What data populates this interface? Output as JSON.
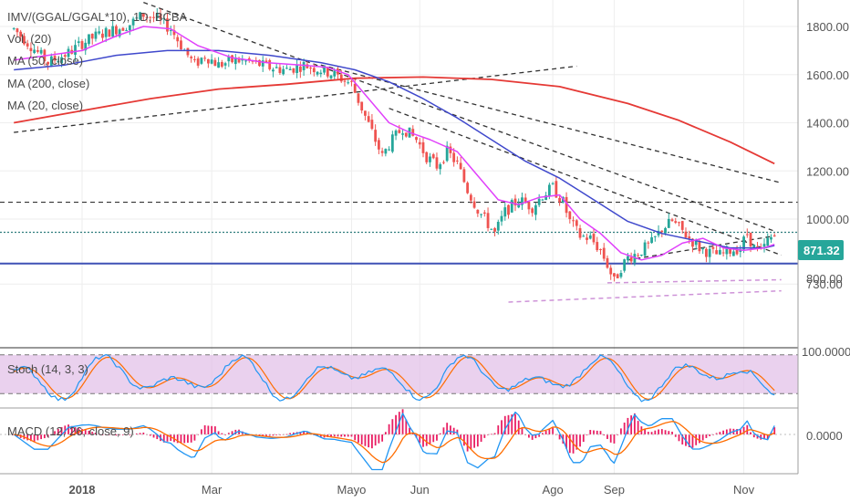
{
  "chart_data": {
    "type": "candlestick",
    "title": "IMV/(GGAL/GGAL*10), 1D, BCBA",
    "indicator_labels": {
      "vol": "Vol. (20)",
      "ma50": "MA (50, close)",
      "ma200": "MA (200, close)",
      "ma20": "MA (20, close)",
      "stoch": "Stoch (14, 3, 3)",
      "macd": "MACD (12, 26, close, 9)"
    },
    "price_axis": {
      "ticks": [
        {
          "value": 1800,
          "label": "1800.00"
        },
        {
          "value": 1600,
          "label": "1600.00"
        },
        {
          "value": 1400,
          "label": "1400.00"
        },
        {
          "value": 1200,
          "label": "1200.00"
        },
        {
          "value": 1000,
          "label": "1000.00"
        },
        {
          "value": 730,
          "label": "730.00"
        }
      ],
      "ylim": [
        690,
        1900
      ],
      "last_price": 871.32,
      "last_price_label": "871.32",
      "partial_label": "800.00"
    },
    "stoch_axis": {
      "label": "100.0000"
    },
    "macd_axis": {
      "label": "0.0000"
    },
    "x_axis": {
      "labels": [
        {
          "label": "2018",
          "day": 0,
          "bold": true
        },
        {
          "label": "Mar",
          "day": 38
        },
        {
          "label": "Mayo",
          "day": 79
        },
        {
          "label": "Jun",
          "day": 99
        },
        {
          "label": "Ago",
          "day": 138
        },
        {
          "label": "Sep",
          "day": 156
        },
        {
          "label": "Nov",
          "day": 194
        }
      ],
      "xlim": [
        -20,
        205
      ]
    },
    "ohlc_anchors": [
      [
        -20,
        1790
      ],
      [
        -15,
        1720
      ],
      [
        -10,
        1650
      ],
      [
        -4,
        1690
      ],
      [
        0,
        1730
      ],
      [
        4,
        1760
      ],
      [
        10,
        1790
      ],
      [
        14,
        1810
      ],
      [
        18,
        1850
      ],
      [
        22,
        1830
      ],
      [
        26,
        1790
      ],
      [
        30,
        1700
      ],
      [
        33,
        1640
      ],
      [
        36,
        1680
      ],
      [
        40,
        1640
      ],
      [
        45,
        1660
      ],
      [
        50,
        1650
      ],
      [
        55,
        1630
      ],
      [
        60,
        1620
      ],
      [
        65,
        1640
      ],
      [
        70,
        1620
      ],
      [
        74,
        1600
      ],
      [
        79,
        1560
      ],
      [
        82,
        1460
      ],
      [
        85,
        1360
      ],
      [
        88,
        1260
      ],
      [
        90,
        1310
      ],
      [
        94,
        1380
      ],
      [
        98,
        1330
      ],
      [
        101,
        1260
      ],
      [
        104,
        1220
      ],
      [
        107,
        1280
      ],
      [
        110,
        1230
      ],
      [
        113,
        1120
      ],
      [
        116,
        1040
      ],
      [
        119,
        980
      ],
      [
        121,
        940
      ],
      [
        124,
        1030
      ],
      [
        128,
        1080
      ],
      [
        132,
        1050
      ],
      [
        135,
        1100
      ],
      [
        138,
        1130
      ],
      [
        141,
        1070
      ],
      [
        143,
        990
      ],
      [
        146,
        930
      ],
      [
        149,
        920
      ],
      [
        152,
        870
      ],
      [
        154,
        810
      ],
      [
        156,
        740
      ],
      [
        158,
        800
      ],
      [
        160,
        840
      ],
      [
        163,
        860
      ],
      [
        167,
        900
      ],
      [
        170,
        960
      ],
      [
        173,
        990
      ],
      [
        176,
        950
      ],
      [
        178,
        920
      ],
      [
        181,
        880
      ],
      [
        184,
        860
      ],
      [
        187,
        850
      ],
      [
        190,
        870
      ],
      [
        193,
        880
      ],
      [
        195,
        940
      ],
      [
        197,
        880
      ],
      [
        199,
        860
      ],
      [
        201,
        910
      ],
      [
        203,
        930
      ]
    ],
    "moving_averages": {
      "ma20": [
        [
          -20,
          1660
        ],
        [
          -10,
          1680
        ],
        [
          0,
          1700
        ],
        [
          10,
          1760
        ],
        [
          18,
          1800
        ],
        [
          26,
          1790
        ],
        [
          34,
          1720
        ],
        [
          44,
          1670
        ],
        [
          54,
          1650
        ],
        [
          64,
          1640
        ],
        [
          72,
          1630
        ],
        [
          78,
          1600
        ],
        [
          84,
          1500
        ],
        [
          90,
          1400
        ],
        [
          96,
          1360
        ],
        [
          102,
          1330
        ],
        [
          110,
          1280
        ],
        [
          116,
          1180
        ],
        [
          122,
          1080
        ],
        [
          128,
          1060
        ],
        [
          134,
          1090
        ],
        [
          140,
          1100
        ],
        [
          146,
          1000
        ],
        [
          152,
          940
        ],
        [
          158,
          860
        ],
        [
          164,
          830
        ],
        [
          170,
          850
        ],
        [
          176,
          900
        ],
        [
          182,
          920
        ],
        [
          188,
          880
        ],
        [
          194,
          870
        ],
        [
          200,
          880
        ],
        [
          203,
          895
        ]
      ],
      "ma50": [
        [
          -20,
          1620
        ],
        [
          -5,
          1640
        ],
        [
          10,
          1680
        ],
        [
          25,
          1700
        ],
        [
          40,
          1700
        ],
        [
          55,
          1680
        ],
        [
          70,
          1650
        ],
        [
          80,
          1620
        ],
        [
          90,
          1570
        ],
        [
          100,
          1500
        ],
        [
          110,
          1420
        ],
        [
          120,
          1330
        ],
        [
          130,
          1240
        ],
        [
          140,
          1170
        ],
        [
          150,
          1080
        ],
        [
          160,
          990
        ],
        [
          170,
          940
        ],
        [
          180,
          910
        ],
        [
          190,
          880
        ],
        [
          200,
          880
        ],
        [
          203,
          890
        ]
      ],
      "ma200": [
        [
          -20,
          1400
        ],
        [
          0,
          1450
        ],
        [
          20,
          1500
        ],
        [
          40,
          1540
        ],
        [
          60,
          1560
        ],
        [
          80,
          1585
        ],
        [
          100,
          1590
        ],
        [
          120,
          1580
        ],
        [
          140,
          1550
        ],
        [
          160,
          1480
        ],
        [
          175,
          1410
        ],
        [
          190,
          1320
        ],
        [
          203,
          1230
        ]
      ]
    },
    "trendlines": [
      {
        "name": "upper-resistance-1",
        "points": [
          [
            18,
            1900
          ],
          [
            203,
            950
          ]
        ]
      },
      {
        "name": "upper-resistance-2",
        "points": [
          [
            70,
            1640
          ],
          [
            205,
            1150
          ]
        ]
      },
      {
        "name": "long-support-rising",
        "points": [
          [
            -20,
            1360
          ],
          [
            145,
            1635
          ]
        ]
      },
      {
        "name": "mid-descending",
        "points": [
          [
            90,
            1460
          ],
          [
            205,
            850
          ]
        ]
      },
      {
        "name": "short-rising",
        "points": [
          [
            160,
            830
          ],
          [
            203,
            930
          ]
        ]
      }
    ],
    "horizontal_lines": [
      {
        "name": "resistance-1070",
        "value": 1070,
        "style": "dashed",
        "color": "#333333"
      },
      {
        "name": "level-945",
        "value": 945,
        "style": "dotted",
        "color": "#2e7d7d"
      },
      {
        "name": "support-815",
        "value": 815,
        "style": "solid",
        "color": "#3f51b5"
      }
    ],
    "channel_lines": [
      {
        "name": "pink-channel-upper",
        "points": [
          [
            154,
            735
          ],
          [
            205,
            748
          ]
        ]
      },
      {
        "name": "pink-channel-lower",
        "points": [
          [
            125,
            655
          ],
          [
            205,
            702
          ]
        ]
      }
    ],
    "stoch_band": {
      "upper": 80,
      "lower": 20
    },
    "colors": {
      "up": "#26a69a",
      "down": "#ef5350",
      "ma20": "#e040fb",
      "ma50": "#3f48cc",
      "ma200": "#e53935",
      "stoch_k": "#2196f3",
      "stoch_d": "#ff6d00",
      "stoch_fill": "#e1bee7",
      "macd_line": "#2196f3",
      "signal_line": "#ff6d00",
      "histogram": "#e91e63",
      "price_tag": "#26a69a"
    }
  }
}
